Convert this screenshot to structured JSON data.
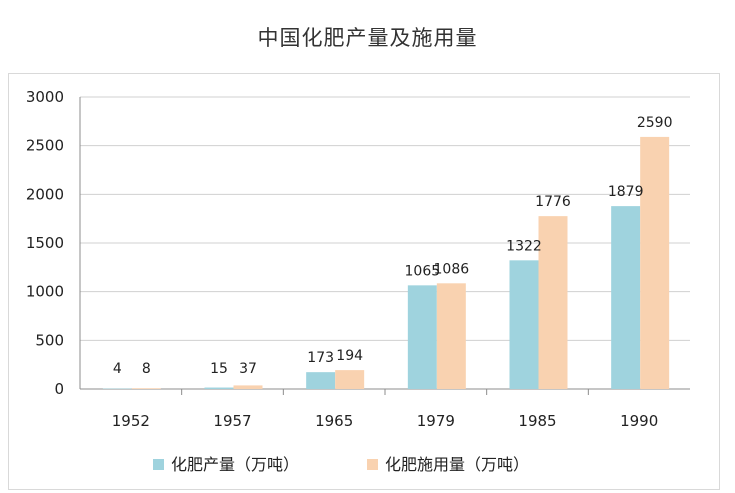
{
  "chart_data": {
    "type": "bar",
    "title": "中国化肥产量及施用量",
    "categories": [
      "1952",
      "1957",
      "1965",
      "1979",
      "1985",
      "1990"
    ],
    "series": [
      {
        "name": "化肥产量（万吨）",
        "values": [
          4,
          15,
          173,
          1065,
          1322,
          1879
        ],
        "color": "#9fd3de"
      },
      {
        "name": "化肥施用量（万吨）",
        "values": [
          8,
          37,
          194,
          1086,
          1776,
          2590
        ],
        "color": "#f9d2b0"
      }
    ],
    "xlabel": "",
    "ylabel": "",
    "ylim": [
      0,
      3000
    ],
    "yticks": [
      0,
      500,
      1000,
      1500,
      2000,
      2500,
      3000
    ],
    "grid": true,
    "legend_position": "bottom"
  }
}
